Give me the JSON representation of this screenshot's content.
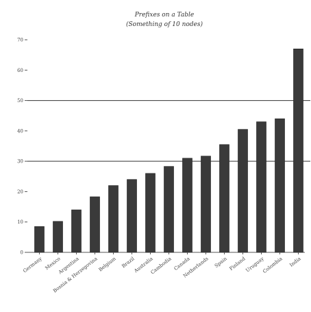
{
  "chart_data": {
    "type": "bar",
    "title": "Prefixes on a Table",
    "subtitle": "(Something of 10 nodes)",
    "xlabel": "",
    "ylabel": "",
    "ylim": [
      0,
      70
    ],
    "yticks": [
      0,
      10,
      20,
      30,
      40,
      50,
      60,
      70
    ],
    "ytick_labels": [
      "0",
      "10",
      "20",
      "30",
      "40",
      "50",
      "60",
      "70"
    ],
    "grid_lines_at": [
      30,
      50
    ],
    "categories": [
      "Germany",
      "Mexico",
      "Argentina",
      "Bosnia & Herzegovina",
      "Belgium",
      "Brazil",
      "Australia",
      "Cambodia",
      "Canada",
      "Netherlands",
      "Spain",
      "Finland",
      "Uruguay",
      "Colombia",
      "India"
    ],
    "values": [
      8.5,
      10.2,
      14.0,
      18.3,
      22.0,
      24.0,
      26.0,
      28.3,
      31.0,
      31.7,
      35.5,
      40.5,
      43.0,
      44.0,
      67.0
    ],
    "bar_color": "#3a3a3a",
    "grid_color": "#333333",
    "axis_color": "#555555"
  }
}
